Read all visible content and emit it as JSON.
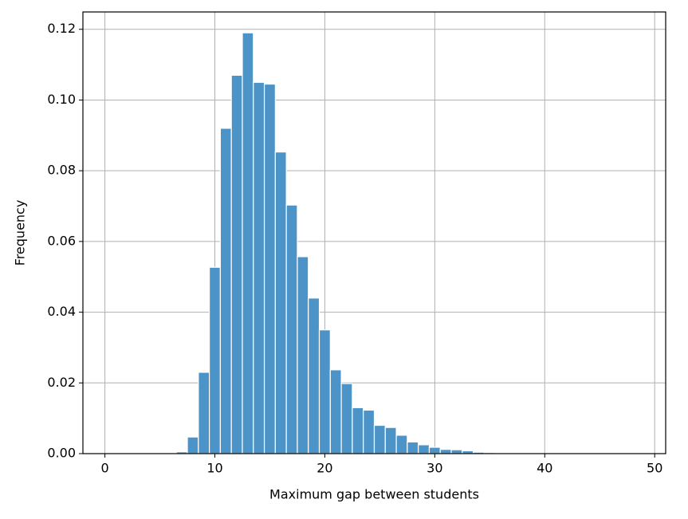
{
  "chart_data": {
    "type": "histogram",
    "xlabel": "Maximum gap between students",
    "ylabel": "Frequency",
    "bins": [
      -0.5,
      0.5,
      1.5,
      2.5,
      3.5,
      4.5,
      5.5,
      6.5,
      7.5,
      8.5,
      9.5,
      10.5,
      11.5,
      12.5,
      13.5,
      14.5,
      15.5,
      16.5,
      17.5,
      18.5,
      19.5,
      20.5,
      21.5,
      22.5,
      23.5,
      24.5,
      25.5,
      26.5,
      27.5,
      28.5,
      29.5,
      30.5,
      31.5,
      32.5,
      33.5,
      34.5,
      35.5,
      36.5,
      37.5,
      38.5,
      39.5,
      40.5,
      41.5,
      42.5,
      43.5,
      44.5,
      45.5,
      46.5,
      47.5,
      48.5,
      49.5
    ],
    "values": [
      0,
      0,
      0,
      0,
      0,
      0,
      0,
      0.0005,
      0.0047,
      0.023,
      0.0527,
      0.092,
      0.107,
      0.119,
      0.105,
      0.1045,
      0.0853,
      0.0703,
      0.0557,
      0.044,
      0.035,
      0.0237,
      0.0198,
      0.013,
      0.0123,
      0.008,
      0.0074,
      0.0052,
      0.0033,
      0.0025,
      0.0018,
      0.0012,
      0.0011,
      0.0008,
      0.0004,
      0.0003,
      0.0002,
      0,
      0,
      0,
      0,
      0,
      0,
      0,
      0,
      0,
      0,
      0,
      0,
      0
    ],
    "color": "#4c94c7",
    "xlim": [
      -2,
      51
    ],
    "xticks": [
      0,
      10,
      20,
      30,
      40,
      50
    ],
    "ylim": [
      0,
      0.1249
    ],
    "yticks": [
      {
        "value": 0,
        "label": "0.00"
      },
      {
        "value": 0.02,
        "label": "0.02"
      },
      {
        "value": 0.04,
        "label": "0.04"
      },
      {
        "value": 0.06,
        "label": "0.06"
      },
      {
        "value": 0.08,
        "label": "0.08"
      },
      {
        "value": 0.1,
        "label": "0.10"
      },
      {
        "value": 0.12,
        "label": "0.12"
      }
    ],
    "grid": true
  }
}
